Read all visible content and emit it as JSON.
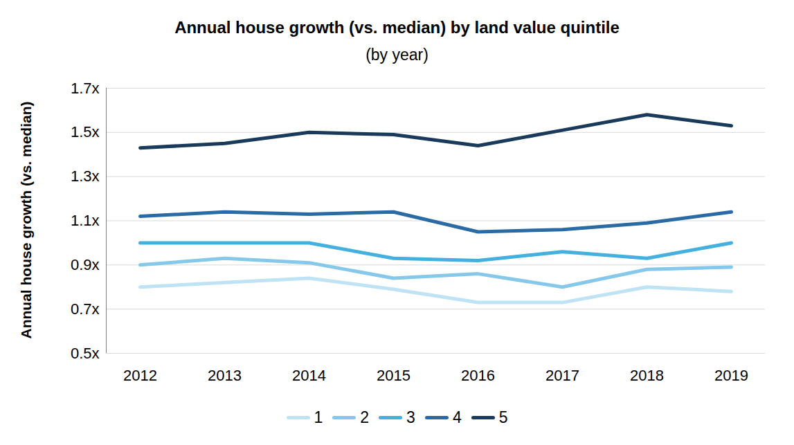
{
  "chart_data": {
    "type": "line",
    "title": "Annual house growth (vs. median) by land value quintile",
    "subtitle": "(by year)",
    "y_label": "Annual house growth (vs. median)",
    "categories": [
      "2012",
      "2013",
      "2014",
      "2015",
      "2016",
      "2017",
      "2018",
      "2019"
    ],
    "series": [
      {
        "name": "1",
        "color": "#bfe3f5",
        "values": [
          0.8,
          0.82,
          0.84,
          0.79,
          0.73,
          0.73,
          0.8,
          0.78
        ]
      },
      {
        "name": "2",
        "color": "#85c8ea",
        "values": [
          0.9,
          0.93,
          0.91,
          0.84,
          0.86,
          0.8,
          0.88,
          0.89
        ]
      },
      {
        "name": "3",
        "color": "#44b0e0",
        "values": [
          1.0,
          1.0,
          1.0,
          0.93,
          0.92,
          0.96,
          0.93,
          1.0
        ]
      },
      {
        "name": "4",
        "color": "#2a6aa5",
        "values": [
          1.12,
          1.14,
          1.13,
          1.14,
          1.05,
          1.06,
          1.09,
          1.14
        ]
      },
      {
        "name": "5",
        "color": "#1a3a5c",
        "values": [
          1.43,
          1.45,
          1.5,
          1.49,
          1.44,
          1.51,
          1.58,
          1.53
        ]
      }
    ],
    "ylim": [
      0.5,
      1.7
    ],
    "yticks": [
      {
        "value": 0.5,
        "label": "0.5x"
      },
      {
        "value": 0.7,
        "label": "0.7x"
      },
      {
        "value": 0.9,
        "label": "0.9x"
      },
      {
        "value": 1.1,
        "label": "1.1x"
      },
      {
        "value": 1.3,
        "label": "1.3x"
      },
      {
        "value": 1.5,
        "label": "1.5x"
      },
      {
        "value": 1.7,
        "label": "1.7x"
      }
    ],
    "grid": true,
    "legend": "bottom"
  }
}
